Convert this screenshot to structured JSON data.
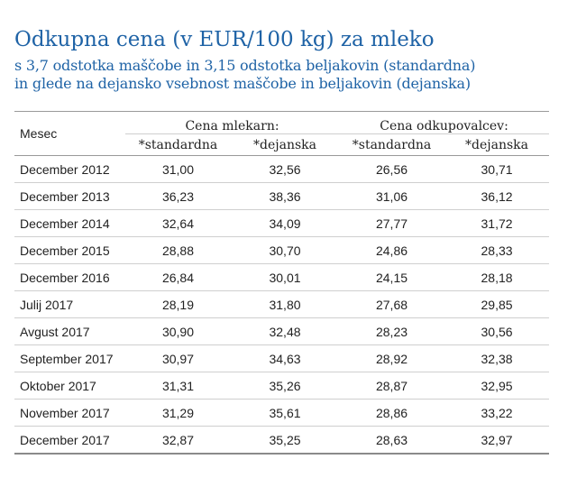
{
  "title": "Odkupna cena (v EUR/100 kg) za mleko",
  "subtitle_line1": "s 3,7 odstotka maščobe in 3,15 odstotka beljakovin (standardna)",
  "subtitle_line2": "in glede na dejansko vsebnost maščobe in beljakovin (dejanska)",
  "table": {
    "month_header": "Mesec",
    "group1": "Cena mlekarn:",
    "group2": "Cena odkupovalcev:",
    "sub_standard": "*standardna",
    "sub_actual": "*dejanska",
    "rows": [
      {
        "month": "December 2012",
        "v1": "31,00",
        "v2": "32,56",
        "v3": "26,56",
        "v4": "30,71"
      },
      {
        "month": "December 2013",
        "v1": "36,23",
        "v2": "38,36",
        "v3": "31,06",
        "v4": "36,12"
      },
      {
        "month": "December 2014",
        "v1": "32,64",
        "v2": "34,09",
        "v3": "27,77",
        "v4": "31,72"
      },
      {
        "month": "December 2015",
        "v1": "28,88",
        "v2": "30,70",
        "v3": "24,86",
        "v4": "28,33"
      },
      {
        "month": "December 2016",
        "v1": "26,84",
        "v2": "30,01",
        "v3": "24,15",
        "v4": "28,18"
      },
      {
        "month": "Julij 2017",
        "v1": "28,19",
        "v2": "31,80",
        "v3": "27,68",
        "v4": "29,85"
      },
      {
        "month": "Avgust 2017",
        "v1": "30,90",
        "v2": "32,48",
        "v3": "28,23",
        "v4": "30,56"
      },
      {
        "month": "September 2017",
        "v1": "30,97",
        "v2": "34,63",
        "v3": "28,92",
        "v4": "32,38"
      },
      {
        "month": "Oktober 2017",
        "v1": "31,31",
        "v2": "35,26",
        "v3": "28,87",
        "v4": "32,95"
      },
      {
        "month": "November 2017",
        "v1": "31,29",
        "v2": "35,61",
        "v3": "28,86",
        "v4": "33,22"
      },
      {
        "month": "December 2017",
        "v1": "32,87",
        "v2": "35,25",
        "v3": "28,63",
        "v4": "32,97"
      }
    ]
  }
}
